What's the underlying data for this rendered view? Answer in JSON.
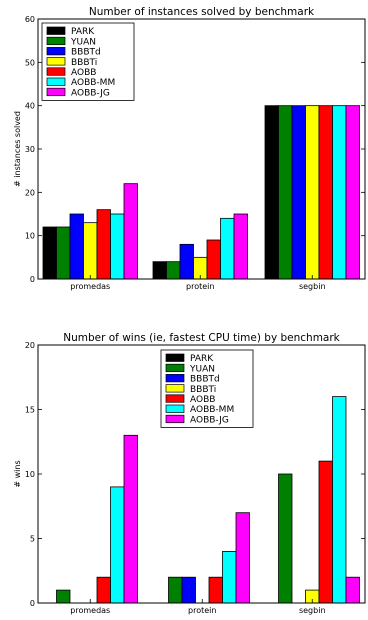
{
  "chart_data": [
    {
      "type": "bar",
      "title": "Number of instances solved by benchmark",
      "xlabel": "",
      "ylabel": "# instances solved",
      "ylim": [
        0,
        60
      ],
      "yticks": [
        "0",
        "10",
        "20",
        "30",
        "40",
        "50",
        "60"
      ],
      "categories": [
        "promedas",
        "protein",
        "segbin"
      ],
      "legend_placement": "top-left",
      "grid": false,
      "series": [
        {
          "name": "PARK",
          "color": "#000000",
          "values": [
            12,
            4,
            40
          ]
        },
        {
          "name": "YUAN",
          "color": "#008000",
          "values": [
            12,
            4,
            40
          ]
        },
        {
          "name": "BBBTd",
          "color": "#0000ff",
          "values": [
            15,
            8,
            40
          ]
        },
        {
          "name": "BBBTi",
          "color": "#ffff00",
          "values": [
            13,
            5,
            40
          ]
        },
        {
          "name": "AOBB",
          "color": "#ff0000",
          "values": [
            16,
            9,
            40
          ]
        },
        {
          "name": "AOBB-MM",
          "color": "#00ffff",
          "values": [
            15,
            14,
            40
          ]
        },
        {
          "name": "AOBB-JG",
          "color": "#ff00ff",
          "values": [
            22,
            15,
            40
          ]
        }
      ]
    },
    {
      "type": "bar",
      "title": "Number of wins (ie, fastest CPU time) by benchmark",
      "xlabel": "",
      "ylabel": "# wins",
      "ylim": [
        0,
        20
      ],
      "yticks": [
        "0",
        "5",
        "10",
        "15",
        "20"
      ],
      "categories": [
        "promedas",
        "protein",
        "segbin"
      ],
      "legend_placement": "top-center",
      "grid": false,
      "series": [
        {
          "name": "PARK",
          "color": "#000000",
          "values": [
            0,
            0,
            0
          ]
        },
        {
          "name": "YUAN",
          "color": "#008000",
          "values": [
            1,
            2,
            10
          ]
        },
        {
          "name": "BBBTd",
          "color": "#0000ff",
          "values": [
            0,
            2,
            0
          ]
        },
        {
          "name": "BBBTi",
          "color": "#ffff00",
          "values": [
            0,
            0,
            1
          ]
        },
        {
          "name": "AOBB",
          "color": "#ff0000",
          "values": [
            2,
            2,
            11
          ]
        },
        {
          "name": "AOBB-MM",
          "color": "#00ffff",
          "values": [
            9,
            4,
            16
          ]
        },
        {
          "name": "AOBB-JG",
          "color": "#ff00ff",
          "values": [
            13,
            7,
            2
          ]
        }
      ]
    }
  ]
}
